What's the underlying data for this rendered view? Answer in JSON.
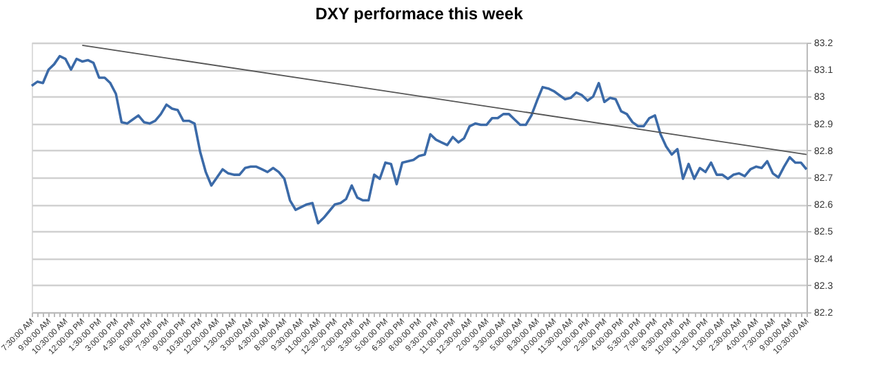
{
  "chart_data": {
    "type": "line",
    "title": "DXY performace this week",
    "categories": [
      "7:30:00 AM",
      null,
      null,
      "9:00:00 AM",
      null,
      null,
      "10:30:00 AM",
      null,
      null,
      "12:00:00 PM",
      null,
      null,
      "1:30:00 PM",
      null,
      null,
      "3:00:00 PM",
      null,
      null,
      "4:30:00 PM",
      null,
      null,
      "6:00:00 PM",
      null,
      null,
      "7:30:00 PM",
      null,
      null,
      "9:00:00 PM",
      null,
      null,
      "10:30:00 PM",
      null,
      null,
      "12:00:00 AM",
      null,
      null,
      "1:30:00 AM",
      null,
      null,
      "3:00:00 AM",
      null,
      null,
      "4:30:00 AM",
      null,
      null,
      "8:00:00 AM",
      null,
      null,
      "9:30:00 AM",
      null,
      null,
      "11:00:00 AM",
      null,
      null,
      "12:30:00 PM",
      null,
      null,
      "2:00:00 PM",
      null,
      null,
      "3:30:00 PM",
      null,
      null,
      "5:00:00 PM",
      null,
      null,
      "6:30:00 PM",
      null,
      null,
      "8:00:00 PM",
      null,
      null,
      "9:30:00 PM",
      null,
      null,
      "11:00:00 PM",
      null,
      null,
      "12:30:00 AM",
      null,
      null,
      "2:00:00 AM",
      null,
      null,
      "3:30:00 AM",
      null,
      null,
      "5:00:00 AM",
      null,
      null,
      "8:30:00 AM",
      null,
      null,
      "10:00:00 AM",
      null,
      null,
      "11:30:00 AM",
      null,
      null,
      "1:00:00 PM",
      null,
      null,
      "2:30:00 PM",
      null,
      null,
      "4:00:00 PM",
      null,
      null,
      "5:30:00 PM",
      null,
      null,
      "7:00:00 PM",
      null,
      null,
      "8:30:00 PM",
      null,
      null,
      "10:00:00 PM",
      null,
      null,
      "11:30:00 PM",
      null,
      null,
      "1:00:00 AM",
      null,
      null,
      "2:30:00 AM",
      null,
      null,
      "4:00:00 AM",
      null,
      null,
      "7:30:00 AM",
      null,
      null,
      "9:00:00 AM",
      null,
      null,
      "10:30:00 AM"
    ],
    "series": [
      {
        "color": "#3b6aa8",
        "values": [
          83.04,
          83.055,
          83.05,
          83.1,
          83.12,
          83.15,
          83.14,
          83.1,
          83.14,
          83.13,
          83.135,
          83.125,
          83.07,
          83.07,
          83.05,
          83.01,
          82.905,
          82.9,
          82.915,
          82.93,
          82.905,
          82.9,
          82.91,
          82.935,
          82.97,
          82.955,
          82.95,
          82.91,
          82.91,
          82.9,
          82.795,
          82.72,
          82.67,
          82.7,
          82.73,
          82.715,
          82.71,
          82.71,
          82.735,
          82.74,
          82.74,
          82.73,
          82.72,
          82.735,
          82.72,
          82.695,
          82.615,
          82.58,
          82.59,
          82.6,
          82.605,
          82.53,
          82.55,
          82.575,
          82.6,
          82.605,
          82.62,
          82.67,
          82.625,
          82.615,
          82.615,
          82.71,
          82.695,
          82.755,
          82.75,
          82.675,
          82.755,
          82.76,
          82.765,
          82.78,
          82.785,
          82.86,
          82.84,
          82.83,
          82.82,
          82.85,
          82.83,
          82.845,
          82.89,
          82.9,
          82.895,
          82.895,
          82.92,
          82.92,
          82.935,
          82.935,
          82.915,
          82.895,
          82.895,
          82.93,
          82.985,
          83.035,
          83.03,
          83.02,
          83.005,
          82.99,
          82.995,
          83.015,
          83.005,
          82.985,
          83.0,
          83.05,
          82.98,
          82.995,
          82.99,
          82.945,
          82.935,
          82.905,
          82.89,
          82.89,
          82.92,
          82.93,
          82.86,
          82.815,
          82.785,
          82.805,
          82.695,
          82.75,
          82.695,
          82.735,
          82.72,
          82.755,
          82.71,
          82.71,
          82.695,
          82.71,
          82.715,
          82.705,
          82.73,
          82.74,
          82.735,
          82.76,
          82.715,
          82.7,
          82.74,
          82.775,
          82.755,
          82.755,
          82.73
        ]
      },
      {
        "type": "line",
        "color": "#555555",
        "values": [
          null,
          null,
          null,
          null,
          null,
          null,
          null,
          null,
          null,
          83.19,
          null,
          null,
          null,
          null,
          null,
          null,
          null,
          null,
          null,
          null,
          null,
          null,
          null,
          null,
          null,
          null,
          null,
          null,
          null,
          null,
          null,
          null,
          null,
          null,
          null,
          null,
          null,
          null,
          null,
          null,
          null,
          null,
          null,
          null,
          null,
          null,
          null,
          null,
          null,
          null,
          null,
          null,
          null,
          null,
          null,
          null,
          null,
          null,
          null,
          null,
          null,
          null,
          null,
          null,
          null,
          null,
          null,
          null,
          null,
          null,
          null,
          null,
          null,
          null,
          null,
          null,
          null,
          null,
          null,
          null,
          null,
          null,
          null,
          null,
          null,
          null,
          null,
          null,
          null,
          null,
          null,
          null,
          null,
          null,
          null,
          null,
          null,
          null,
          null,
          null,
          null,
          null,
          null,
          null,
          null,
          null,
          null,
          null,
          null,
          null,
          null,
          null,
          null,
          null,
          null,
          null,
          null,
          null,
          null,
          null,
          null,
          null,
          null,
          null,
          null,
          null,
          null,
          null,
          null,
          null,
          null,
          null,
          null,
          null,
          null,
          null,
          null,
          null,
          82.785
        ]
      }
    ],
    "ylim": [
      82.2,
      83.2
    ],
    "yticks": [
      82.2,
      82.3,
      82.4,
      82.5,
      82.6,
      82.7,
      82.8,
      82.9,
      83,
      83.1,
      83.2
    ],
    "grid": "y",
    "marker": "none",
    "line_style": "solid"
  }
}
